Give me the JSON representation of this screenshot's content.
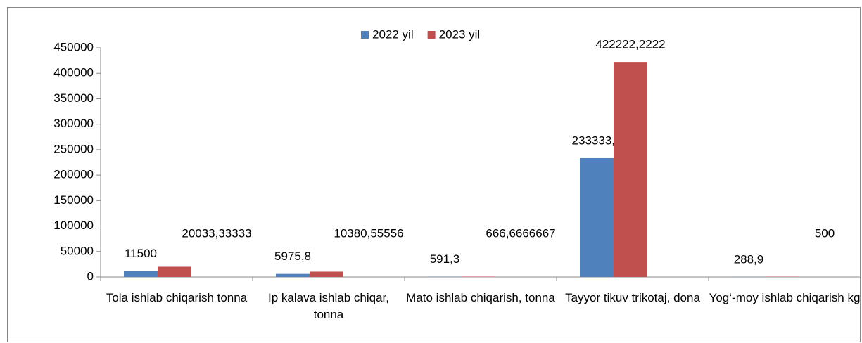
{
  "chart_data": {
    "type": "bar",
    "categories": [
      "Tola ishlab chiqarish tonna",
      "Ip kalava ishlab chiqar, tonna",
      "Mato ishlab chiqarish, tonna",
      "Tayyor tikuv trikotaj, dona",
      "Yog‘-moy ishlab chiqarish kg"
    ],
    "series": [
      {
        "name": "2022 yil",
        "color": "#4f81bd",
        "values": [
          11500,
          5975.8,
          591.3,
          233333.3,
          288.9
        ],
        "value_labels": [
          "11500",
          "5975,8",
          "591,3",
          "233333,3",
          "288,9"
        ]
      },
      {
        "name": "2023 yil",
        "color": "#c0504d",
        "values": [
          20033.33333,
          10380.55556,
          666.6666667,
          422222.2222,
          500
        ],
        "value_labels": [
          "20033,33333",
          "10380,55556",
          "666,6666667",
          "422222,2222",
          "500"
        ]
      }
    ],
    "ylim": [
      0,
      450000
    ],
    "yticks": [
      0,
      50000,
      100000,
      150000,
      200000,
      250000,
      300000,
      350000,
      400000,
      450000
    ],
    "legend": "top",
    "grid": false
  }
}
